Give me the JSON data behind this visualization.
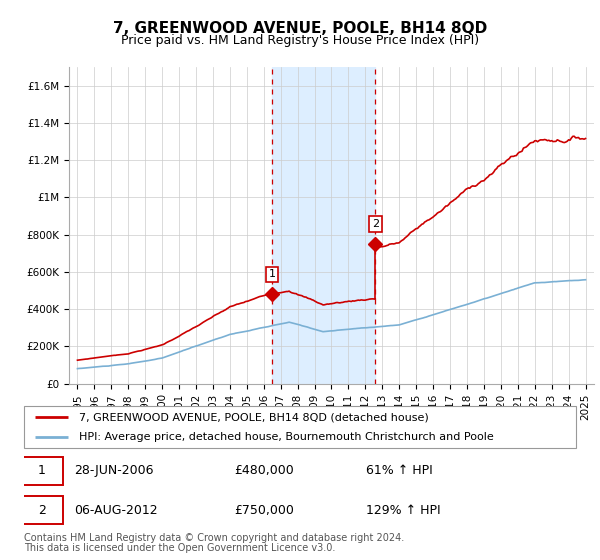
{
  "title": "7, GREENWOOD AVENUE, POOLE, BH14 8QD",
  "subtitle": "Price paid vs. HM Land Registry's House Price Index (HPI)",
  "ylim": [
    0,
    1700000
  ],
  "yticks": [
    0,
    200000,
    400000,
    600000,
    800000,
    1000000,
    1200000,
    1400000,
    1600000
  ],
  "ytick_labels": [
    "£0",
    "£200K",
    "£400K",
    "£600K",
    "£800K",
    "£1M",
    "£1.2M",
    "£1.4M",
    "£1.6M"
  ],
  "x_start_year": 1995,
  "x_end_year": 2025,
  "sale1_year": 2006.49,
  "sale1_price": 480000,
  "sale1_label": "1",
  "sale1_date": "28-JUN-2006",
  "sale1_hpi_pct": "61%",
  "sale2_year": 2012.59,
  "sale2_price": 750000,
  "sale2_label": "2",
  "sale2_date": "06-AUG-2012",
  "sale2_hpi_pct": "129%",
  "red_line_color": "#cc0000",
  "blue_line_color": "#7ab0d4",
  "shade_color": "#ddeeff",
  "grid_color": "#cccccc",
  "background_color": "#ffffff",
  "legend_line1": "7, GREENWOOD AVENUE, POOLE, BH14 8QD (detached house)",
  "legend_line2": "HPI: Average price, detached house, Bournemouth Christchurch and Poole",
  "footer1": "Contains HM Land Registry data © Crown copyright and database right 2024.",
  "footer2": "This data is licensed under the Open Government Licence v3.0.",
  "title_fontsize": 11,
  "subtitle_fontsize": 9,
  "tick_fontsize": 7.5,
  "legend_fontsize": 8,
  "footer_fontsize": 7
}
